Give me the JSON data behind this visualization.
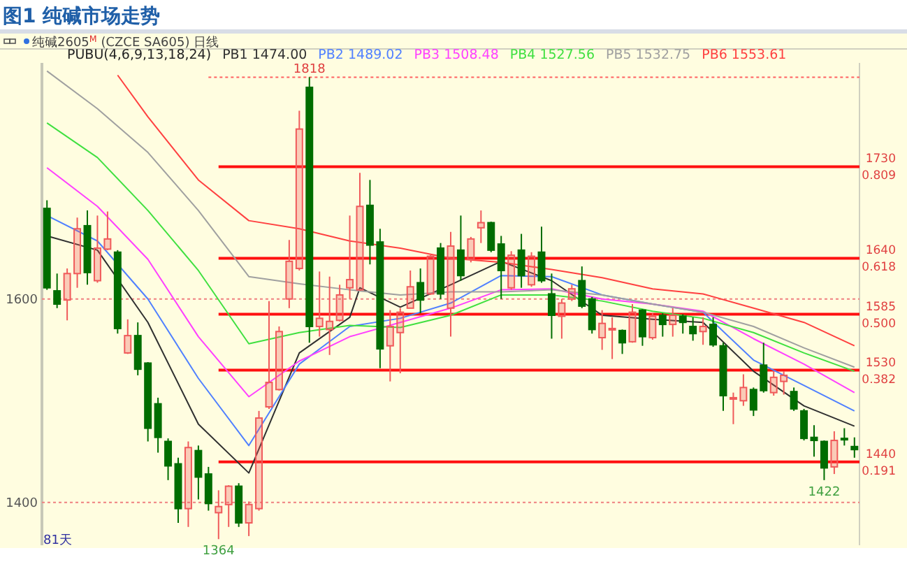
{
  "chart_data": {
    "type": "candlestick",
    "title": "图1 纯碱市场走势",
    "subtitle": "纯碱2605$^{M}$ (CZCE SA605) 日线",
    "legend_title": "PUBU(4,6,9,13,18,24)",
    "grid": "y",
    "tick_labels": "y",
    "categories": [
      null,
      null,
      null,
      null,
      null,
      null,
      null,
      null,
      null,
      null,
      null,
      null,
      null,
      null,
      null,
      null,
      null,
      null,
      null,
      null,
      null,
      null,
      null,
      null,
      null,
      null,
      null,
      null,
      null,
      null,
      null,
      null,
      null,
      null,
      null,
      null,
      null,
      null,
      null,
      null,
      null,
      null,
      null,
      null,
      null,
      null,
      null,
      null,
      null,
      null,
      null,
      null,
      null,
      null,
      null,
      null,
      null,
      null,
      null,
      null,
      null,
      null,
      null,
      null,
      null,
      null,
      null,
      null,
      null,
      null,
      null,
      null,
      null,
      null,
      null,
      null,
      null,
      null,
      null,
      null,
      null
    ],
    "ylim": [
      1358,
      1832
    ],
    "yticks": [
      1400,
      1600
    ],
    "ohlc": [
      [
        1689,
        1697,
        1609,
        1611
      ],
      [
        1608,
        1625,
        1591,
        1595
      ],
      [
        1599,
        1630,
        1579,
        1625
      ],
      [
        1625,
        1680,
        1611,
        1669
      ],
      [
        1672,
        1687,
        1614,
        1626
      ],
      [
        1618,
        1682,
        1616,
        1650
      ],
      [
        1649,
        1686,
        1648,
        1659
      ],
      [
        1646,
        1648,
        1566,
        1571
      ],
      [
        1547,
        1580,
        1546,
        1564
      ],
      [
        1564,
        1577,
        1525,
        1531
      ],
      [
        1537,
        1538,
        1460,
        1473
      ],
      [
        1497,
        1503,
        1449,
        1464
      ],
      [
        1460,
        1463,
        1422,
        1436
      ],
      [
        1438,
        1444,
        1380,
        1394
      ],
      [
        1394,
        1460,
        1376,
        1454
      ],
      [
        1451,
        1456,
        1403,
        1425
      ],
      [
        1428,
        1435,
        1392,
        1399
      ],
      [
        1390,
        1412,
        1364,
        1396
      ],
      [
        1398,
        1417,
        1376,
        1416
      ],
      [
        1416,
        1419,
        1376,
        1380
      ],
      [
        1380,
        1401,
        1367,
        1398
      ],
      [
        1394,
        1490,
        1392,
        1483
      ],
      [
        1494,
        1598,
        1492,
        1518
      ],
      [
        1511,
        1573,
        1510,
        1568
      ],
      [
        1600,
        1658,
        1591,
        1637
      ],
      [
        1630,
        1785,
        1628,
        1767
      ],
      [
        1808,
        1818,
        1557,
        1573
      ],
      [
        1573,
        1627,
        1563,
        1581
      ],
      [
        1570,
        1622,
        1545,
        1578
      ],
      [
        1579,
        1614,
        1578,
        1604
      ],
      [
        1611,
        1682,
        1600,
        1619
      ],
      [
        1609,
        1724,
        1608,
        1691
      ],
      [
        1692,
        1717,
        1634,
        1653
      ],
      [
        1656,
        1669,
        1532,
        1551
      ],
      [
        1554,
        1589,
        1519,
        1573
      ],
      [
        1567,
        1591,
        1527,
        1587
      ],
      [
        1591,
        1628,
        1591,
        1612
      ],
      [
        1616,
        1630,
        1586,
        1599
      ],
      [
        1605,
        1643,
        1604,
        1642
      ],
      [
        1650,
        1655,
        1600,
        1605
      ],
      [
        1591,
        1666,
        1563,
        1652
      ],
      [
        1648,
        1682,
        1618,
        1623
      ],
      [
        1639,
        1661,
        1636,
        1659
      ],
      [
        1670,
        1687,
        1655,
        1675
      ],
      [
        1675,
        1676,
        1646,
        1648
      ],
      [
        1654,
        1662,
        1600,
        1628
      ],
      [
        1611,
        1647,
        1609,
        1643
      ],
      [
        1648,
        1664,
        1611,
        1623
      ],
      [
        1614,
        1646,
        1612,
        1642
      ],
      [
        1646,
        1671,
        1616,
        1618
      ],
      [
        1605,
        1625,
        1561,
        1584
      ],
      [
        1583,
        1600,
        1561,
        1596
      ],
      [
        1600,
        1614,
        1598,
        1610
      ],
      [
        1618,
        1632,
        1591,
        1593
      ],
      [
        1600,
        1602,
        1566,
        1570
      ],
      [
        1562,
        1589,
        1550,
        1576
      ],
      [
        1570,
        1582,
        1541,
        1571
      ],
      [
        1569,
        1570,
        1546,
        1557
      ],
      [
        1558,
        1595,
        1557,
        1587
      ],
      [
        1589,
        1590,
        1554,
        1563
      ],
      [
        1562,
        1586,
        1560,
        1583
      ],
      [
        1584,
        1586,
        1563,
        1575
      ],
      [
        1575,
        1591,
        1563,
        1584
      ],
      [
        1583,
        1585,
        1566,
        1577
      ],
      [
        1573,
        1582,
        1559,
        1566
      ],
      [
        1568,
        1582,
        1555,
        1573
      ],
      [
        1575,
        1582,
        1553,
        1555
      ],
      [
        1554,
        1557,
        1490,
        1505
      ],
      [
        1502,
        1508,
        1477,
        1503
      ],
      [
        1500,
        1526,
        1495,
        1513
      ],
      [
        1511,
        1513,
        1485,
        1491
      ],
      [
        1535,
        1557,
        1508,
        1510
      ],
      [
        1508,
        1529,
        1505,
        1523
      ],
      [
        1519,
        1529,
        1506,
        1525
      ],
      [
        1509,
        1513,
        1490,
        1492
      ],
      [
        1490,
        1492,
        1461,
        1463
      ],
      [
        1464,
        1476,
        1445,
        1461
      ],
      [
        1460,
        1461,
        1422,
        1434
      ],
      [
        1435,
        1470,
        1428,
        1461
      ],
      [
        1463,
        1473,
        1456,
        1462
      ],
      [
        1455,
        1464,
        1444,
        1452
      ]
    ],
    "colors": [
      "#006d00",
      "#006d00",
      "#f05a5a",
      "#f05a5a",
      "#006d00",
      "#f05a5a",
      "#f05a5a",
      "#006d00",
      "#f05a5a",
      "#006d00",
      "#006d00",
      "#006d00",
      "#006d00",
      "#006d00",
      "#f05a5a",
      "#006d00",
      "#006d00",
      "#f05a5a",
      "#f05a5a",
      "#006d00",
      "#f05a5a",
      "#f05a5a",
      "#f05a5a",
      "#f05a5a",
      "#f05a5a",
      "#f05a5a",
      "#006d00",
      "#f05a5a",
      "#f05a5a",
      "#f05a5a",
      "#f05a5a",
      "#f05a5a",
      "#006d00",
      "#006d00",
      "#f05a5a",
      "#f05a5a",
      "#f05a5a",
      "#006d00",
      "#f05a5a",
      "#006d00",
      "#f05a5a",
      "#006d00",
      "#f05a5a",
      "#f05a5a",
      "#006d00",
      "#006d00",
      "#f05a5a",
      "#006d00",
      "#f05a5a",
      "#006d00",
      "#006d00",
      "#f05a5a",
      "#f05a5a",
      "#006d00",
      "#006d00",
      "#f05a5a",
      "#f05a5a",
      "#006d00",
      "#f05a5a",
      "#006d00",
      "#f05a5a",
      "#006d00",
      "#f05a5a",
      "#006d00",
      "#006d00",
      "#f05a5a",
      "#006d00",
      "#006d00",
      "#f05a5a",
      "#f05a5a",
      "#006d00",
      "#006d00",
      "#f05a5a",
      "#f05a5a",
      "#006d00",
      "#006d00",
      "#006d00",
      "#006d00",
      "#f05a5a",
      "#006d00",
      "#006d00"
    ],
    "series": [
      {
        "type": "line",
        "name": "PB1 1474.00",
        "color": "#303030",
        "values": [
          1662,
          null,
          null,
          null,
          null,
          1648,
          null,
          null,
          null,
          null,
          1577,
          null,
          null,
          null,
          null,
          1477,
          null,
          null,
          null,
          null,
          1429,
          null,
          null,
          null,
          null,
          1547,
          null,
          null,
          null,
          null,
          1582,
          1611,
          null,
          null,
          null,
          1592,
          null,
          null,
          null,
          null,
          1614,
          null,
          null,
          null,
          null,
          1637,
          null,
          null,
          null,
          null,
          1618,
          null,
          null,
          null,
          null,
          1584,
          null,
          null,
          null,
          null,
          1580,
          null,
          null,
          null,
          null,
          1577,
          null,
          null,
          null,
          null,
          1529,
          null,
          null,
          null,
          null,
          1495,
          null,
          null,
          null,
          null,
          1475
        ]
      },
      {
        "type": "line",
        "name": "PB2 1489.02",
        "color": "#5080ff",
        "values": [
          1682,
          null,
          null,
          null,
          null,
          1657,
          null,
          null,
          null,
          null,
          1600,
          null,
          null,
          null,
          null,
          1522,
          null,
          null,
          null,
          null,
          1456,
          null,
          null,
          null,
          null,
          1536,
          null,
          null,
          null,
          null,
          1573,
          null,
          null,
          null,
          null,
          1581,
          null,
          null,
          null,
          null,
          1596,
          null,
          null,
          null,
          null,
          1623,
          null,
          null,
          null,
          null,
          1622,
          null,
          null,
          null,
          null,
          1604,
          null,
          null,
          null,
          null,
          1595,
          null,
          null,
          null,
          null,
          1587,
          null,
          null,
          null,
          null,
          1540,
          null,
          null,
          null,
          null,
          1515,
          null,
          null,
          null,
          null,
          1490
        ]
      },
      {
        "type": "line",
        "name": "PB3 1508.48",
        "color": "#ff40ff",
        "values": [
          1729,
          null,
          null,
          null,
          null,
          1691,
          null,
          null,
          null,
          null,
          1639,
          null,
          null,
          null,
          null,
          1563,
          null,
          null,
          null,
          null,
          1504,
          null,
          null,
          null,
          null,
          1539,
          null,
          null,
          null,
          null,
          1563,
          null,
          null,
          null,
          null,
          1577,
          null,
          null,
          null,
          null,
          1591,
          null,
          null,
          null,
          null,
          1609,
          null,
          null,
          null,
          null,
          1610,
          null,
          null,
          null,
          null,
          1600,
          null,
          null,
          null,
          null,
          1595,
          null,
          null,
          null,
          null,
          1588,
          null,
          null,
          null,
          null,
          1561,
          null,
          null,
          null,
          null,
          1536,
          null,
          null,
          null,
          null,
          1508
        ]
      },
      {
        "type": "line",
        "name": "PB4 1527.56",
        "color": "#40e040",
        "values": [
          1773,
          null,
          null,
          null,
          null,
          1739,
          null,
          null,
          null,
          null,
          1687,
          null,
          null,
          null,
          null,
          1628,
          null,
          null,
          null,
          null,
          1556,
          null,
          null,
          null,
          null,
          1567,
          null,
          null,
          null,
          null,
          1574,
          null,
          null,
          null,
          null,
          1572,
          null,
          null,
          null,
          null,
          1584,
          null,
          null,
          null,
          null,
          1604,
          null,
          null,
          null,
          null,
          1604,
          null,
          null,
          null,
          null,
          1598,
          null,
          null,
          null,
          null,
          1588,
          null,
          null,
          null,
          null,
          1581,
          null,
          null,
          null,
          null,
          1567,
          null,
          null,
          null,
          null,
          1547,
          null,
          null,
          null,
          null,
          1529
        ]
      },
      {
        "type": "line",
        "name": "PB5 1532.75",
        "color": "#a0a0a0",
        "values": [
          1824,
          null,
          null,
          null,
          null,
          1787,
          null,
          null,
          null,
          null,
          1744,
          null,
          null,
          null,
          null,
          1687,
          null,
          null,
          null,
          null,
          1622,
          null,
          null,
          null,
          null,
          1615,
          null,
          null,
          null,
          null,
          1609,
          null,
          null,
          null,
          null,
          1604,
          null,
          null,
          null,
          null,
          1607,
          null,
          null,
          null,
          null,
          1607,
          null,
          null,
          null,
          null,
          1609,
          null,
          null,
          null,
          null,
          1604,
          null,
          null,
          null,
          null,
          1595,
          null,
          null,
          null,
          null,
          1587,
          null,
          null,
          null,
          null,
          1573,
          null,
          null,
          null,
          null,
          1552,
          null,
          null,
          null,
          null,
          1533
        ]
      },
      {
        "type": "line",
        "name": "PB6 1553.61",
        "color": "#ff4040",
        "values": [
          null,
          null,
          null,
          null,
          null,
          null,
          null,
          1820,
          null,
          null,
          1779,
          null,
          null,
          null,
          null,
          1717,
          null,
          null,
          null,
          null,
          1677,
          null,
          null,
          null,
          null,
          1669,
          null,
          null,
          null,
          null,
          1657,
          null,
          null,
          null,
          null,
          1650,
          null,
          null,
          null,
          null,
          1640,
          null,
          null,
          null,
          null,
          1636,
          null,
          null,
          null,
          null,
          1629,
          null,
          null,
          null,
          null,
          1621,
          null,
          null,
          null,
          null,
          1610,
          null,
          null,
          null,
          null,
          1605,
          null,
          null,
          null,
          null,
          1591,
          null,
          null,
          null,
          null,
          1577,
          null,
          null,
          null,
          null,
          1554
        ]
      }
    ],
    "ref_lines": [
      {
        "axis": "y",
        "value": 1818,
        "color": "#ff6060",
        "line_style": "dotted"
      },
      {
        "axis": "y",
        "value": 1730,
        "label": "1730\n0.809",
        "color": "#ff1010",
        "line_style": "solid"
      },
      {
        "axis": "y",
        "value": 1640,
        "label": "1640\n0.618",
        "color": "#ff1010",
        "line_style": "solid"
      },
      {
        "axis": "y",
        "value": 1585,
        "label": "1585\n0.500",
        "color": "#ff1010",
        "line_style": "solid"
      },
      {
        "axis": "y",
        "value": 1530,
        "label": "1530\n0.382",
        "color": "#ff1010",
        "line_style": "solid"
      },
      {
        "axis": "y",
        "value": 1440,
        "label": "1440\n0.191",
        "color": "#ff1010",
        "line_style": "solid"
      }
    ],
    "annotations": [
      {
        "text": "1818",
        "y": 1818
      },
      {
        "text": "1364",
        "y": 1364
      },
      {
        "text": "1422",
        "y": 1422
      },
      "81天"
    ]
  }
}
